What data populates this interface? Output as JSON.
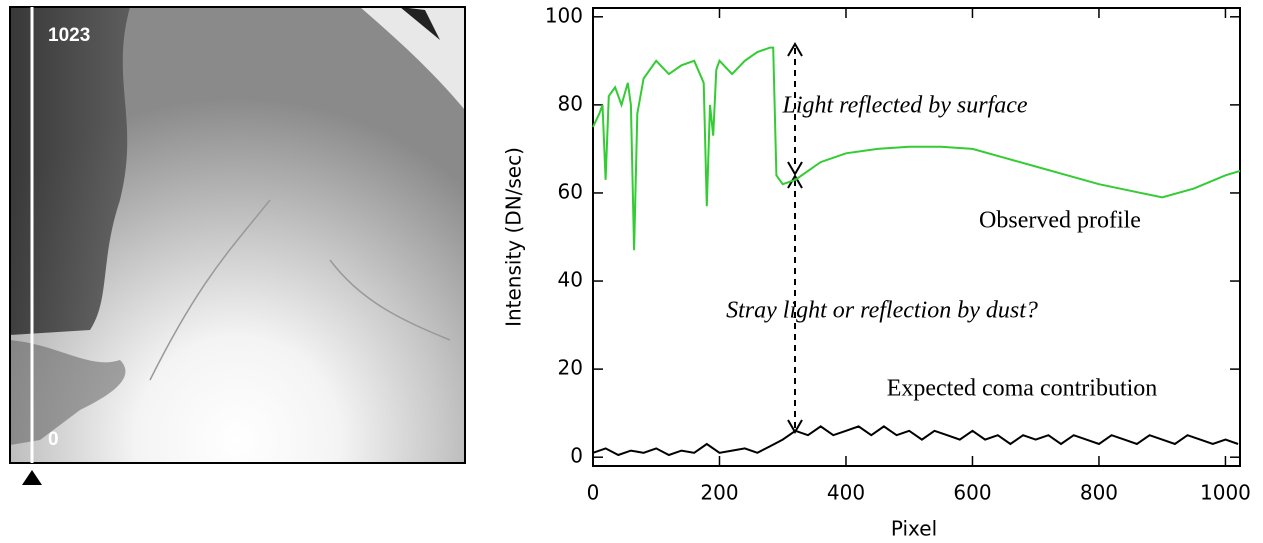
{
  "image": {
    "top_label": "1023",
    "bottom_label": "0"
  },
  "chart_data": {
    "type": "line",
    "xlabel": "Pixel",
    "ylabel": "Intensity (DN/sec)",
    "xlim": [
      0,
      1023
    ],
    "xticks": [
      0,
      200,
      400,
      600,
      800,
      1000
    ],
    "ylim": [
      -2,
      102
    ],
    "yticks": [
      0,
      20,
      40,
      60,
      80,
      100
    ],
    "annotations": [
      "Light reflected by surface",
      "Observed profile",
      "Stray light or reflection by dust?",
      "Expected coma contribution"
    ],
    "series": [
      {
        "color": "#33cc33",
        "x": [
          0,
          10,
          15,
          20,
          25,
          35,
          45,
          55,
          60,
          65,
          70,
          80,
          100,
          120,
          140,
          160,
          175,
          180,
          185,
          190,
          195,
          200,
          220,
          240,
          260,
          280,
          285,
          290,
          300,
          320,
          340,
          360,
          400,
          450,
          500,
          550,
          600,
          650,
          700,
          750,
          800,
          850,
          900,
          950,
          1000,
          1023
        ],
        "values": [
          75,
          78,
          80,
          63,
          82,
          84,
          80,
          85,
          80,
          47,
          78,
          86,
          90,
          87,
          89,
          90,
          85,
          57,
          80,
          73,
          88,
          90,
          87,
          90,
          92,
          93,
          93,
          64,
          62,
          63,
          65,
          67,
          69,
          70,
          70.5,
          70.5,
          70,
          68,
          66,
          64,
          62,
          60.5,
          59,
          61,
          64,
          65
        ]
      },
      {
        "color": "#000000",
        "x": [
          0,
          20,
          40,
          60,
          80,
          100,
          120,
          140,
          160,
          180,
          200,
          220,
          240,
          260,
          280,
          300,
          320,
          340,
          360,
          380,
          400,
          420,
          440,
          460,
          480,
          500,
          520,
          540,
          560,
          580,
          600,
          620,
          640,
          660,
          680,
          700,
          720,
          740,
          760,
          780,
          800,
          820,
          840,
          860,
          880,
          900,
          920,
          940,
          960,
          980,
          1000,
          1020
        ],
        "values": [
          1,
          2,
          0.5,
          1.5,
          1,
          2,
          0.5,
          1.5,
          1,
          3,
          1,
          1.5,
          2,
          1,
          2.5,
          4,
          6,
          5,
          7,
          5,
          6,
          7,
          5,
          7,
          5,
          6,
          4,
          6,
          5,
          4,
          6,
          4,
          5,
          3,
          5,
          4,
          5,
          3,
          5,
          4,
          3,
          5,
          4,
          3,
          5,
          4,
          3,
          5,
          4,
          3,
          4,
          3
        ]
      }
    ]
  }
}
